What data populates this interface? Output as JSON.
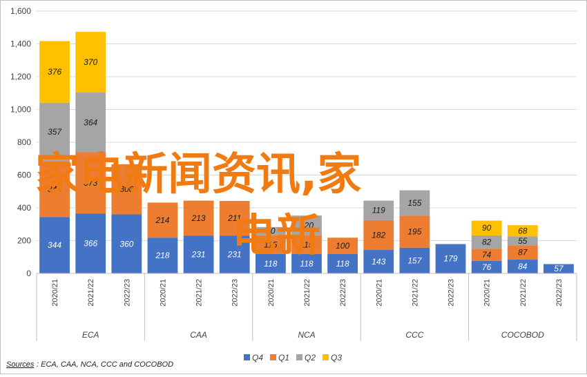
{
  "chart_data": {
    "type": "bar",
    "stacked": true,
    "group_labels": [
      "ECA",
      "CAA",
      "NCA",
      "CCC",
      "COCOBOD"
    ],
    "categories": [
      {
        "group": "ECA",
        "label": "2020/21"
      },
      {
        "group": "ECA",
        "label": "2021/22"
      },
      {
        "group": "ECA",
        "label": "2022/23"
      },
      {
        "group": "CAA",
        "label": "2020/21"
      },
      {
        "group": "CAA",
        "label": "2021/22"
      },
      {
        "group": "CAA",
        "label": "2022/23"
      },
      {
        "group": "NCA",
        "label": "2020/21"
      },
      {
        "group": "NCA",
        "label": "2021/22"
      },
      {
        "group": "NCA",
        "label": "2022/23"
      },
      {
        "group": "CCC",
        "label": "2020/21"
      },
      {
        "group": "CCC",
        "label": "2021/22"
      },
      {
        "group": "CCC",
        "label": "2022/23"
      },
      {
        "group": "COCOBOD",
        "label": "2020/21"
      },
      {
        "group": "COCOBOD",
        "label": "2021/22"
      },
      {
        "group": "COCOBOD",
        "label": "2022/23"
      }
    ],
    "series": [
      {
        "name": "Q4",
        "color": "#4472c4",
        "label_color": "#ffffff",
        "values": [
          344,
          366,
          360,
          218,
          231,
          231,
          118,
          118,
          118,
          143,
          157,
          179,
          76,
          84,
          57
        ]
      },
      {
        "name": "Q1",
        "color": "#ed7d31",
        "label_color": "#1a1a1a",
        "values": [
          340,
          373,
          306,
          214,
          213,
          211,
          115,
          115,
          100,
          182,
          195,
          0,
          74,
          87,
          0
        ]
      },
      {
        "name": "Q2",
        "color": "#a5a5a5",
        "label_color": "#1a1a1a",
        "values": [
          357,
          364,
          0,
          0,
          0,
          0,
          50,
          120,
          0,
          119,
          155,
          0,
          82,
          55,
          0
        ]
      },
      {
        "name": "Q3",
        "color": "#ffc000",
        "label_color": "#1a1a1a",
        "values": [
          376,
          370,
          0,
          0,
          0,
          0,
          0,
          0,
          0,
          0,
          0,
          0,
          90,
          68,
          0
        ]
      }
    ],
    "y_ticks": [
      "0",
      "200",
      "400",
      "600",
      "800",
      "1,000",
      "1,200",
      "1,400",
      "1,600"
    ],
    "ylim": [
      0,
      1600
    ],
    "grid": true,
    "legend_position": "bottom",
    "source_label": "Sources",
    "source_text": ": ECA, CAA, NCA, CCC and COCOBOD"
  },
  "watermark": {
    "line1": "家电新闻资讯,家",
    "line2": "电新",
    "color": "#f07b12"
  }
}
